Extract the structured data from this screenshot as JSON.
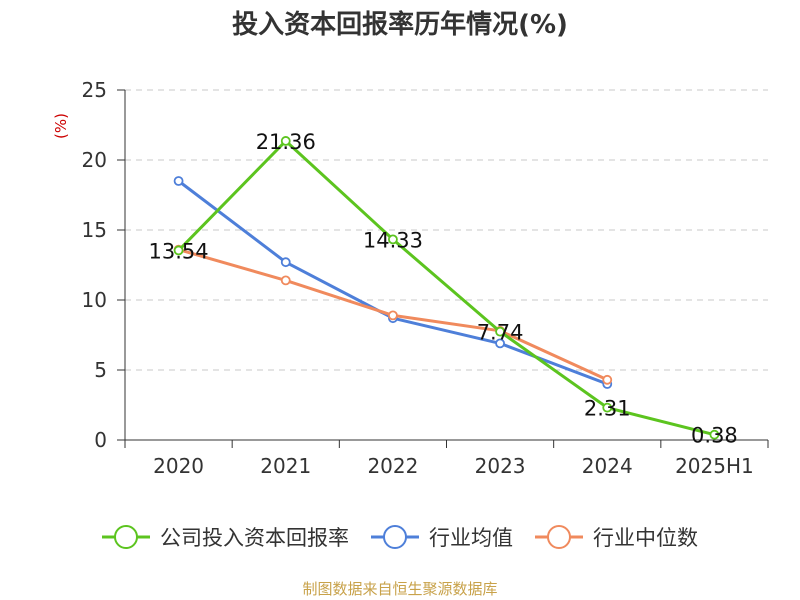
{
  "chart_data": {
    "type": "line",
    "title": "投入资本回报率历年情况(%)",
    "ylabel": "(%)",
    "categories": [
      "2020",
      "2021",
      "2022",
      "2023",
      "2024",
      "2025H1"
    ],
    "ylim": [
      0,
      25
    ],
    "yticks": [
      0,
      5,
      10,
      15,
      20,
      25
    ],
    "grid": true,
    "legend_position": "bottom",
    "series": [
      {
        "name": "公司投入资本回报率",
        "color": "#5cc41f",
        "values": [
          13.54,
          21.36,
          14.33,
          7.74,
          2.31,
          0.38
        ],
        "labels": true
      },
      {
        "name": "行业均值",
        "color": "#4e7fd9",
        "values": [
          18.5,
          12.7,
          8.7,
          6.9,
          4.0,
          null
        ],
        "labels": false
      },
      {
        "name": "行业中位数",
        "color": "#f08a5d",
        "values": [
          13.6,
          11.4,
          8.9,
          7.8,
          4.3,
          null
        ],
        "labels": false
      }
    ],
    "source": "制图数据来自恒生聚源数据库"
  }
}
